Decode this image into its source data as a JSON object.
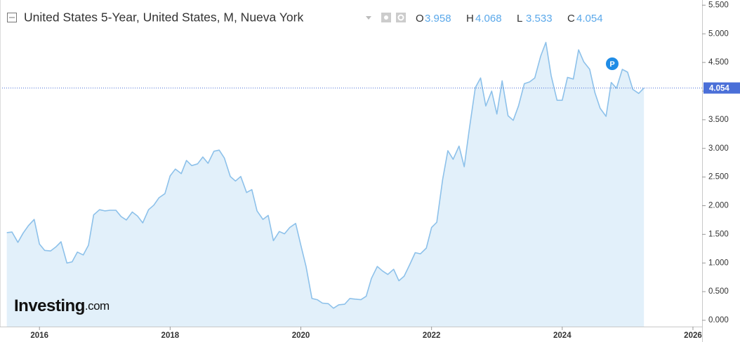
{
  "chart_data": {
    "type": "area",
    "title": "United States 5-Year, United States, M, Nueva York",
    "ohlc": [
      {
        "label": "O",
        "value": 3.958
      },
      {
        "label": "H",
        "value": 4.068
      },
      {
        "label": "L",
        "value": 3.533
      },
      {
        "label": "C",
        "value": 4.054
      }
    ],
    "marker": "P",
    "logo": [
      "Investing",
      ".com"
    ],
    "x": [
      2015.5,
      2015.58,
      2015.67,
      2015.75,
      2015.83,
      2015.92,
      2016,
      2016.08,
      2016.17,
      2016.25,
      2016.33,
      2016.42,
      2016.5,
      2016.58,
      2016.67,
      2016.75,
      2016.83,
      2016.92,
      2017,
      2017.08,
      2017.17,
      2017.25,
      2017.33,
      2017.42,
      2017.5,
      2017.58,
      2017.67,
      2017.75,
      2017.83,
      2017.92,
      2018,
      2018.08,
      2018.17,
      2018.25,
      2018.33,
      2018.42,
      2018.5,
      2018.58,
      2018.67,
      2018.75,
      2018.83,
      2018.92,
      2019,
      2019.08,
      2019.17,
      2019.25,
      2019.33,
      2019.42,
      2019.5,
      2019.58,
      2019.67,
      2019.75,
      2019.83,
      2019.92,
      2020,
      2020.08,
      2020.17,
      2020.25,
      2020.33,
      2020.42,
      2020.5,
      2020.58,
      2020.67,
      2020.75,
      2020.83,
      2020.92,
      2021,
      2021.08,
      2021.17,
      2021.25,
      2021.33,
      2021.42,
      2021.5,
      2021.58,
      2021.67,
      2021.75,
      2021.83,
      2021.92,
      2022,
      2022.08,
      2022.17,
      2022.25,
      2022.33,
      2022.42,
      2022.5,
      2022.58,
      2022.67,
      2022.75,
      2022.83,
      2022.92,
      2023,
      2023.08,
      2023.17,
      2023.25,
      2023.33,
      2023.42,
      2023.5,
      2023.58,
      2023.67,
      2023.75,
      2023.83,
      2023.92,
      2024,
      2024.08,
      2024.17,
      2024.25,
      2024.33,
      2024.42,
      2024.5,
      2024.58,
      2024.67,
      2024.75,
      2024.83,
      2024.92,
      2025,
      2025.08,
      2025.17,
      2025.25
    ],
    "series": [
      {
        "color": "#8dc1ea",
        "fill": "#e2f0fa",
        "values": [
          1.53,
          1.54,
          1.36,
          1.52,
          1.65,
          1.76,
          1.33,
          1.22,
          1.21,
          1.28,
          1.37,
          1.0,
          1.02,
          1.19,
          1.14,
          1.31,
          1.84,
          1.93,
          1.91,
          1.92,
          1.92,
          1.81,
          1.75,
          1.89,
          1.82,
          1.7,
          1.93,
          2.01,
          2.14,
          2.21,
          2.52,
          2.64,
          2.56,
          2.79,
          2.7,
          2.73,
          2.85,
          2.74,
          2.95,
          2.97,
          2.83,
          2.51,
          2.43,
          2.51,
          2.23,
          2.28,
          1.91,
          1.76,
          1.83,
          1.39,
          1.55,
          1.51,
          1.62,
          1.69,
          1.31,
          0.94,
          0.38,
          0.36,
          0.3,
          0.29,
          0.21,
          0.27,
          0.28,
          0.38,
          0.37,
          0.36,
          0.42,
          0.73,
          0.94,
          0.86,
          0.8,
          0.89,
          0.69,
          0.77,
          0.98,
          1.18,
          1.16,
          1.26,
          1.62,
          1.71,
          2.46,
          2.96,
          2.81,
          3.04,
          2.68,
          3.35,
          4.06,
          4.23,
          3.74,
          4.0,
          3.6,
          4.18,
          3.57,
          3.49,
          3.74,
          4.13,
          4.16,
          4.23,
          4.61,
          4.85,
          4.27,
          3.84,
          3.84,
          4.24,
          4.21,
          4.72,
          4.51,
          4.38,
          3.97,
          3.7,
          3.56,
          4.15,
          4.05,
          4.38,
          4.33,
          4.03,
          3.96,
          4.054
        ]
      }
    ],
    "xlim": [
      2015.45,
      2026.14
    ],
    "xticks": [
      2016,
      2018,
      2020,
      2022,
      2024,
      2026
    ],
    "ylim": [
      -0.11,
      5.59
    ],
    "yticks": [
      {
        "value": 0,
        "label": "0.000"
      },
      {
        "value": 0.5,
        "label": "0.500"
      },
      {
        "value": 1,
        "label": "1.000"
      },
      {
        "value": 1.5,
        "label": "1.500"
      },
      {
        "value": 2,
        "label": "2.000"
      },
      {
        "value": 2.5,
        "label": "2.500"
      },
      {
        "value": 3,
        "label": "3.000"
      },
      {
        "value": 3.5,
        "label": "3.500"
      },
      {
        "value": 4,
        "label": "4.000"
      },
      {
        "value": 4.5,
        "label": "4.500"
      },
      {
        "value": 5,
        "label": "5.000"
      },
      {
        "value": 5.5,
        "label": "5.500"
      }
    ]
  }
}
